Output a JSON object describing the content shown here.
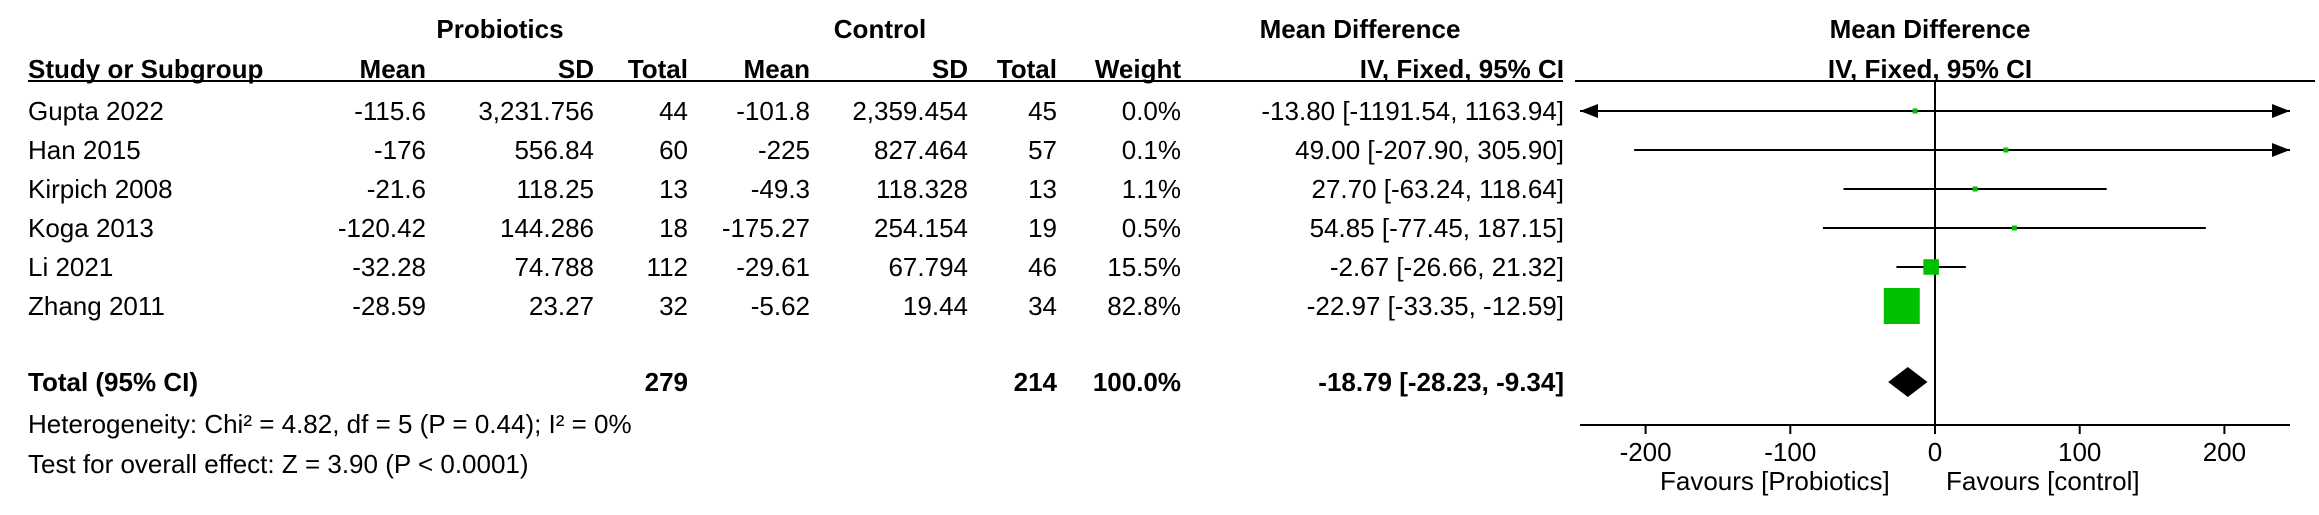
{
  "headers": {
    "group1": "Probiotics",
    "group2": "Control",
    "md_left": "Mean Difference",
    "md_right": "Mean Difference",
    "study": "Study or Subgroup",
    "mean1": "Mean",
    "sd1": "SD",
    "total1": "Total",
    "mean2": "Mean",
    "sd2": "SD",
    "total2": "Total",
    "weight": "Weight",
    "method_left": "IV, Fixed, 95% CI",
    "method_right": "IV, Fixed, 95% CI"
  },
  "studies": [
    {
      "name": "Gupta 2022",
      "mean1": "-115.6",
      "sd1": "3,231.756",
      "n1": "44",
      "mean2": "-101.8",
      "sd2": "2,359.454",
      "n2": "45",
      "weight": "0.0%",
      "ci_text": "-13.80 [-1191.54, 1163.94]"
    },
    {
      "name": "Han 2015",
      "mean1": "-176",
      "sd1": "556.84",
      "n1": "60",
      "mean2": "-225",
      "sd2": "827.464",
      "n2": "57",
      "weight": "0.1%",
      "ci_text": "49.00 [-207.90, 305.90]"
    },
    {
      "name": "Kirpich 2008",
      "mean1": "-21.6",
      "sd1": "118.25",
      "n1": "13",
      "mean2": "-49.3",
      "sd2": "118.328",
      "n2": "13",
      "weight": "1.1%",
      "ci_text": "27.70 [-63.24, 118.64]"
    },
    {
      "name": "Koga 2013",
      "mean1": "-120.42",
      "sd1": "144.286",
      "n1": "18",
      "mean2": "-175.27",
      "sd2": "254.154",
      "n2": "19",
      "weight": "0.5%",
      "ci_text": "54.85 [-77.45, 187.15]"
    },
    {
      "name": "Li 2021",
      "mean1": "-32.28",
      "sd1": "74.788",
      "n1": "112",
      "mean2": "-29.61",
      "sd2": "67.794",
      "n2": "46",
      "weight": "15.5%",
      "ci_text": "-2.67 [-26.66, 21.32]"
    },
    {
      "name": "Zhang 2011",
      "mean1": "-28.59",
      "sd1": "23.27",
      "n1": "32",
      "mean2": "-5.62",
      "sd2": "19.44",
      "n2": "34",
      "weight": "82.8%",
      "ci_text": "-22.97 [-33.35, -12.59]"
    }
  ],
  "total": {
    "label": "Total (95% CI)",
    "n1": "279",
    "n2": "214",
    "weight": "100.0%",
    "ci_text": "-18.79 [-28.23, -9.34]"
  },
  "heterogeneity": "Heterogeneity: Chi² = 4.82, df = 5 (P = 0.44); I² = 0%",
  "overall_effect": "Test for overall effect: Z = 3.90 (P < 0.0001)",
  "axis": {
    "favours_left": "Favours [Probiotics]",
    "favours_right": "Favours [control]"
  },
  "colors": {
    "marker": "#00c000",
    "diamond": "#000000",
    "line": "#000000"
  },
  "chart_data": {
    "type": "forest",
    "xlim": [
      -250,
      250
    ],
    "ticks": [
      -200,
      -100,
      0,
      100,
      200
    ],
    "tick_labels": [
      "-200",
      "-100",
      "0",
      "100",
      "200"
    ],
    "reference_line": 0,
    "points": [
      {
        "study": "Gupta 2022",
        "estimate": -13.8,
        "lower": -1191.54,
        "upper": 1163.94,
        "weight": 0.0
      },
      {
        "study": "Han 2015",
        "estimate": 49.0,
        "lower": -207.9,
        "upper": 305.9,
        "weight": 0.1
      },
      {
        "study": "Kirpich 2008",
        "estimate": 27.7,
        "lower": -63.24,
        "upper": 118.64,
        "weight": 1.1
      },
      {
        "study": "Koga 2013",
        "estimate": 54.85,
        "lower": -77.45,
        "upper": 187.15,
        "weight": 0.5
      },
      {
        "study": "Li 2021",
        "estimate": -2.67,
        "lower": -26.66,
        "upper": 21.32,
        "weight": 15.5
      },
      {
        "study": "Zhang 2011",
        "estimate": -22.97,
        "lower": -33.35,
        "upper": -12.59,
        "weight": 82.8
      }
    ],
    "pooled": {
      "estimate": -18.79,
      "lower": -28.23,
      "upper": -9.34
    }
  }
}
